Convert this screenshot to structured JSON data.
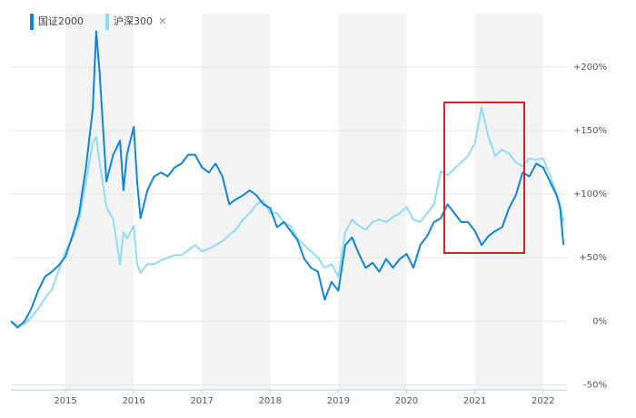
{
  "chart_data": {
    "type": "line",
    "x": [
      2014.2,
      2014.3,
      2014.4,
      2014.5,
      2014.6,
      2014.7,
      2014.8,
      2014.9,
      2015.0,
      2015.1,
      2015.2,
      2015.3,
      2015.4,
      2015.45,
      2015.5,
      2015.6,
      2015.7,
      2015.8,
      2015.85,
      2015.9,
      2016.0,
      2016.05,
      2016.1,
      2016.2,
      2016.3,
      2016.4,
      2016.5,
      2016.6,
      2016.7,
      2016.8,
      2016.9,
      2017.0,
      2017.1,
      2017.2,
      2017.3,
      2017.4,
      2017.5,
      2017.6,
      2017.7,
      2017.8,
      2017.9,
      2018.0,
      2018.1,
      2018.2,
      2018.3,
      2018.4,
      2018.5,
      2018.6,
      2018.7,
      2018.8,
      2018.9,
      2019.0,
      2019.1,
      2019.2,
      2019.3,
      2019.4,
      2019.5,
      2019.6,
      2019.7,
      2019.8,
      2019.9,
      2020.0,
      2020.1,
      2020.2,
      2020.3,
      2020.4,
      2020.5,
      2020.6,
      2020.7,
      2020.8,
      2020.9,
      2021.0,
      2021.1,
      2021.2,
      2021.3,
      2021.4,
      2021.5,
      2021.6,
      2021.7,
      2021.8,
      2021.9,
      2022.0,
      2022.1,
      2022.2,
      2022.25,
      2022.3
    ],
    "series": [
      {
        "name": "国证2000",
        "color": "#0e86dc",
        "values": [
          0,
          -5,
          0,
          10,
          24,
          35,
          39,
          44,
          51,
          67,
          85,
          121,
          167,
          228,
          196,
          110,
          131,
          142,
          103,
          131,
          153,
          110,
          81,
          103,
          114,
          117,
          114,
          121,
          124,
          131,
          131,
          121,
          117,
          124,
          114,
          92,
          96,
          99,
          103,
          99,
          92,
          89,
          74,
          78,
          71,
          64,
          49,
          42,
          39,
          17,
          31,
          24,
          60,
          66,
          53,
          42,
          46,
          39,
          49,
          42,
          49,
          53,
          42,
          60,
          67,
          78,
          81,
          92,
          85,
          78,
          78,
          71,
          60,
          67,
          71,
          74,
          89,
          99,
          117,
          114,
          124,
          121,
          110,
          99,
          89,
          60
        ]
      },
      {
        "name": "沪深300",
        "color": "#8fdcf5",
        "values": [
          0,
          -3,
          -2,
          3,
          10,
          18,
          25,
          40,
          55,
          65,
          80,
          110,
          140,
          145,
          125,
          90,
          80,
          45,
          70,
          65,
          75,
          45,
          38,
          45,
          45,
          48,
          50,
          52,
          52,
          56,
          60,
          55,
          57,
          60,
          63,
          68,
          72,
          80,
          85,
          92,
          95,
          85,
          85,
          78,
          75,
          65,
          60,
          55,
          50,
          42,
          45,
          35,
          70,
          80,
          75,
          72,
          78,
          80,
          78,
          82,
          85,
          90,
          80,
          78,
          85,
          92,
          118,
          115,
          120,
          125,
          130,
          140,
          168,
          145,
          130,
          135,
          132,
          125,
          122,
          128,
          127,
          128,
          115,
          100,
          92,
          78
        ]
      }
    ],
    "xlim": [
      2014.2,
      2022.35
    ],
    "xticks": [
      2015,
      2016,
      2017,
      2018,
      2019,
      2020,
      2021,
      2022
    ],
    "ylim": [
      -54,
      242
    ],
    "yticks": [
      {
        "value": -50,
        "label": "-50%"
      },
      {
        "value": 0,
        "label": "0%"
      },
      {
        "value": 50,
        "label": "+50%"
      },
      {
        "value": 100,
        "label": "+100%"
      },
      {
        "value": 150,
        "label": "+150%"
      },
      {
        "value": 200,
        "label": "+200%"
      }
    ],
    "grid": true
  }
}
